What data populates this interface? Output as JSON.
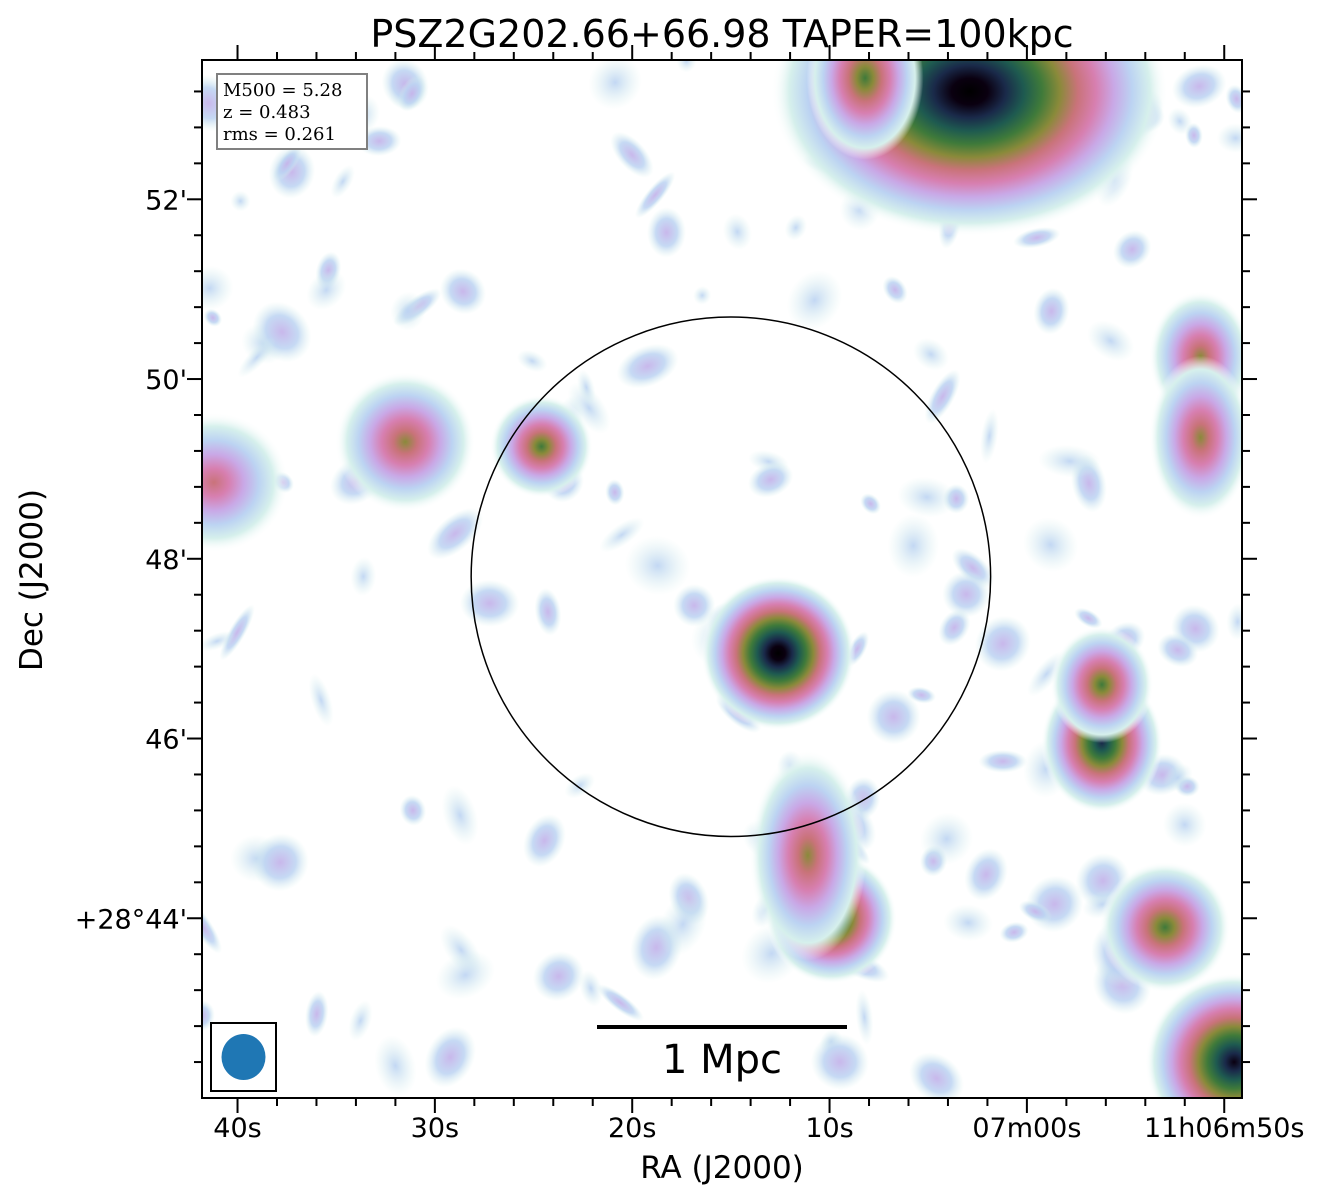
{
  "chart_data": {
    "type": "heatmap",
    "title": "PSZ2G202.66+66.98 TAPER=100kpc",
    "xlabel": "RA (J2000)",
    "ylabel": "Dec (J2000)",
    "x_tick_labels": [
      "40s",
      "30s",
      "20s",
      "10s",
      "07m00s",
      "11h06m50s"
    ],
    "y_tick_labels": [
      "52'",
      "50'",
      "48'",
      "46'",
      "+28°44'"
    ],
    "x_ticks_seconds": [
      40,
      30,
      20,
      10,
      0,
      -10
    ],
    "y_ticks_arcmin": [
      52,
      50,
      48,
      46,
      44
    ],
    "xlim_seconds": [
      41.8,
      -10.9
    ],
    "ylim_arcmin": [
      42.0,
      53.55
    ],
    "info_box": {
      "lines": [
        "M500 = 5.28",
        "z = 0.483",
        "rms = 0.261"
      ]
    },
    "scale_bar": {
      "label": "1 Mpc"
    },
    "beam": {
      "color": "#1f77b4"
    },
    "r500_circle": {
      "center_ra_s": 15.0,
      "center_dec_arcmin": 47.8,
      "radius_arcmin": 2.89,
      "color": "#000000"
    },
    "colormap": [
      "#ffffff",
      "#d6f0ec",
      "#bcd3f2",
      "#c9a8e6",
      "#d77fb0",
      "#c9737a",
      "#8a8a3a",
      "#3f7a3a",
      "#1e5a50",
      "#1a2a4a",
      "#0a0010",
      "#000000"
    ],
    "sources": [
      {
        "ra_s": 2.9,
        "dec": 53.2,
        "peak": 1.0,
        "sx": 0.85,
        "sy": 0.62,
        "label": "bright-compact-source-north"
      },
      {
        "ra_s": 12.6,
        "dec": 46.95,
        "peak": 0.97,
        "sx": 0.33,
        "sy": 0.33,
        "label": "central-compact-source"
      },
      {
        "ra_s": 9.9,
        "dec": 44.0,
        "peak": 0.78,
        "sx": 0.28,
        "sy": 0.28,
        "label": "source-south"
      },
      {
        "ra_s": 11.1,
        "dec": 44.7,
        "peak": 0.55,
        "sx": 0.25,
        "sy": 0.45,
        "label": "source-south-extension"
      },
      {
        "ra_s": -3.8,
        "dec": 45.95,
        "peak": 0.78,
        "sx": 0.26,
        "sy": 0.3,
        "label": "source-east-lower"
      },
      {
        "ra_s": -3.8,
        "dec": 46.6,
        "peak": 0.62,
        "sx": 0.22,
        "sy": 0.25,
        "label": "source-east-upper"
      },
      {
        "ra_s": -7.0,
        "dec": 43.9,
        "peak": 0.62,
        "sx": 0.28,
        "sy": 0.28,
        "label": "source-southeast"
      },
      {
        "ra_s": -10.5,
        "dec": 42.4,
        "peak": 0.92,
        "sx": 0.38,
        "sy": 0.38,
        "label": "source-corner"
      },
      {
        "ra_s": 24.6,
        "dec": 49.25,
        "peak": 0.66,
        "sx": 0.22,
        "sy": 0.22,
        "label": "source-west-inner"
      },
      {
        "ra_s": 31.5,
        "dec": 49.3,
        "peak": 0.5,
        "sx": 0.3,
        "sy": 0.3,
        "label": "source-west"
      },
      {
        "ra_s": 41.2,
        "dec": 48.85,
        "peak": 0.48,
        "sx": 0.32,
        "sy": 0.3,
        "label": "source-west-edge"
      },
      {
        "ra_s": 8.2,
        "dec": 53.35,
        "peak": 0.62,
        "sx": 0.25,
        "sy": 0.35,
        "label": "source-north"
      },
      {
        "ra_s": -8.8,
        "dec": 50.25,
        "peak": 0.58,
        "sx": 0.22,
        "sy": 0.28,
        "label": "source-east-north"
      },
      {
        "ra_s": -8.8,
        "dec": 49.35,
        "peak": 0.5,
        "sx": 0.22,
        "sy": 0.35,
        "label": "source-east-mid"
      }
    ]
  }
}
